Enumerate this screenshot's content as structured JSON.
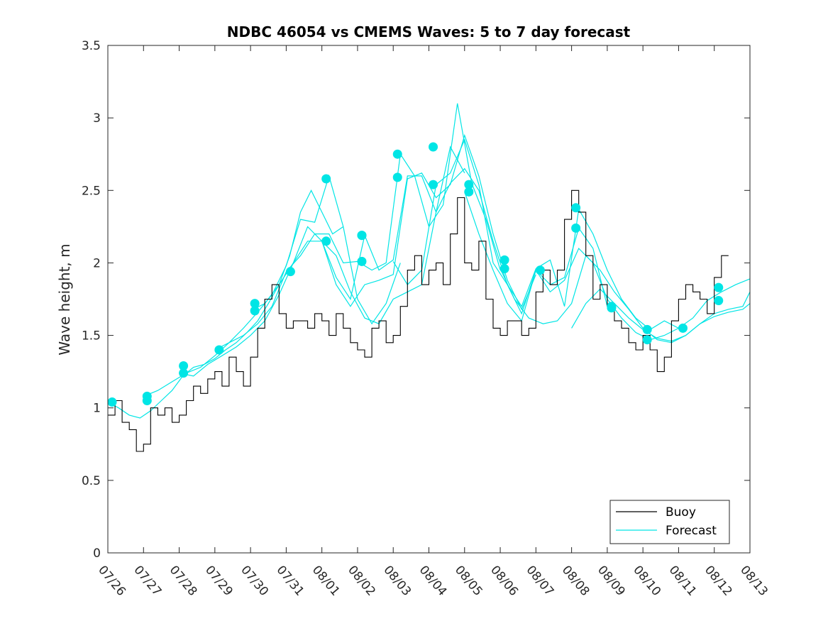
{
  "chart_data": {
    "type": "line",
    "title": "NDBC 46054 vs CMEMS Waves: 5 to 7 day forecast",
    "ylabel": "Wave height, m",
    "xlabel": "",
    "x_tick_labels": [
      "07/26",
      "07/27",
      "07/28",
      "07/29",
      "07/30",
      "07/31",
      "08/01",
      "08/02",
      "08/03",
      "08/04",
      "08/05",
      "08/06",
      "08/07",
      "08/08",
      "08/09",
      "08/10",
      "08/11",
      "08/12",
      "08/13"
    ],
    "xlim_days": [
      0,
      18
    ],
    "ylim": [
      0,
      3.5
    ],
    "y_ticks": [
      "0",
      "0.5",
      "1",
      "1.5",
      "2",
      "2.5",
      "3",
      "3.5"
    ],
    "legend": {
      "position": "bottom-right",
      "entries": [
        "Buoy",
        "Forecast"
      ]
    },
    "colors": {
      "buoy": "#000000",
      "forecast": "#00e5e5"
    },
    "series": [
      {
        "name": "Buoy",
        "x": [
          0,
          0.2,
          0.4,
          0.6,
          0.8,
          1.0,
          1.2,
          1.4,
          1.6,
          1.8,
          2.0,
          2.2,
          2.4,
          2.6,
          2.8,
          3.0,
          3.2,
          3.4,
          3.6,
          3.8,
          4.0,
          4.2,
          4.4,
          4.6,
          4.8,
          5.0,
          5.2,
          5.4,
          5.6,
          5.8,
          6.0,
          6.2,
          6.4,
          6.6,
          6.8,
          7.0,
          7.2,
          7.4,
          7.6,
          7.8,
          8.0,
          8.2,
          8.4,
          8.6,
          8.8,
          9.0,
          9.2,
          9.4,
          9.6,
          9.8,
          10.0,
          10.2,
          10.4,
          10.6,
          10.8,
          11.0,
          11.2,
          11.4,
          11.6,
          11.8,
          12.0,
          12.2,
          12.4,
          12.6,
          12.8,
          13.0,
          13.2,
          13.4,
          13.6,
          13.8,
          14.0,
          14.2,
          14.4,
          14.6,
          14.8,
          15.0,
          15.2,
          15.4,
          15.6,
          15.8,
          16.0,
          16.2,
          16.4,
          16.6,
          16.8,
          17.0,
          17.2,
          17.4
        ],
        "y": [
          0.95,
          1.05,
          0.9,
          0.85,
          0.7,
          0.75,
          1.0,
          0.95,
          1.0,
          0.9,
          0.95,
          1.05,
          1.15,
          1.1,
          1.2,
          1.25,
          1.15,
          1.35,
          1.25,
          1.15,
          1.35,
          1.55,
          1.75,
          1.85,
          1.65,
          1.55,
          1.6,
          1.6,
          1.55,
          1.65,
          1.6,
          1.5,
          1.65,
          1.55,
          1.45,
          1.4,
          1.35,
          1.55,
          1.6,
          1.45,
          1.5,
          1.7,
          1.95,
          2.05,
          1.85,
          1.95,
          2.0,
          1.85,
          2.2,
          2.45,
          2.0,
          1.95,
          2.15,
          1.75,
          1.55,
          1.5,
          1.6,
          1.6,
          1.5,
          1.55,
          1.8,
          1.95,
          1.85,
          1.95,
          2.3,
          2.5,
          2.35,
          2.05,
          1.75,
          1.85,
          1.7,
          1.6,
          1.55,
          1.45,
          1.4,
          1.5,
          1.4,
          1.25,
          1.35,
          1.6,
          1.75,
          1.85,
          1.8,
          1.75,
          1.65,
          1.9,
          2.05,
          2.05
        ]
      },
      {
        "name": "Forecast",
        "lines": [
          {
            "x": [
              0,
              0.3,
              0.6,
              0.9,
              1.2,
              1.5,
              1.8,
              2.1,
              2.4,
              2.7,
              3.0,
              3.3,
              3.6,
              3.9,
              4.2,
              4.5,
              4.8,
              5.1,
              5.4,
              5.7,
              6.0,
              6.3,
              6.6
            ],
            "y": [
              1.04,
              1.0,
              0.95,
              0.93,
              0.98,
              1.05,
              1.12,
              1.22,
              1.28,
              1.3,
              1.34,
              1.4,
              1.45,
              1.52,
              1.6,
              1.72,
              1.85,
              2.05,
              2.35,
              2.5,
              2.35,
              2.2,
              2.25
            ]
          },
          {
            "x": [
              1.0,
              1.4,
              1.8,
              2.2,
              2.6,
              3.0,
              3.4,
              3.8,
              4.2,
              4.6,
              5.0,
              5.4,
              5.8,
              6.2,
              6.6,
              7.0,
              7.4,
              7.8,
              8.2
            ],
            "y": [
              1.08,
              1.12,
              1.18,
              1.24,
              1.28,
              1.36,
              1.45,
              1.55,
              1.66,
              1.78,
              1.98,
              2.3,
              2.28,
              2.6,
              2.25,
              1.75,
              1.58,
              1.72,
              2.0
            ]
          },
          {
            "x": [
              2.0,
              2.4,
              2.8,
              3.2,
              3.6,
              4.0,
              4.4,
              4.8,
              5.2,
              5.6,
              6.0,
              6.4,
              6.8,
              7.2,
              7.6,
              8.0,
              8.4,
              8.8,
              9.2,
              9.6,
              10.0
            ],
            "y": [
              1.24,
              1.22,
              1.3,
              1.36,
              1.42,
              1.5,
              1.6,
              1.78,
              2.0,
              2.25,
              2.15,
              1.9,
              1.75,
              2.19,
              1.95,
              2.02,
              2.6,
              2.6,
              2.35,
              2.8,
              2.62
            ]
          },
          {
            "x": [
              3.0,
              3.4,
              3.8,
              4.2,
              4.6,
              5.0,
              5.4,
              5.8,
              6.2,
              6.6,
              7.0,
              7.4,
              7.8,
              8.2,
              8.6,
              9.0,
              9.4,
              9.8,
              10.2,
              10.6,
              11.0
            ],
            "y": [
              1.4,
              1.45,
              1.5,
              1.58,
              1.7,
              1.94,
              2.05,
              2.2,
              2.2,
              2.0,
              2.01,
              1.95,
              2.0,
              2.75,
              2.6,
              2.25,
              2.4,
              3.1,
              2.55,
              2.3,
              1.95
            ]
          },
          {
            "x": [
              4.0,
              4.4,
              4.8,
              5.2,
              5.6,
              6.0,
              6.4,
              6.8,
              7.2,
              7.6,
              8.0,
              8.4,
              8.8,
              9.2,
              9.6,
              10.0,
              10.4,
              10.8,
              11.2,
              11.6,
              12.0
            ],
            "y": [
              1.67,
              1.72,
              1.85,
              2.0,
              2.15,
              2.15,
              1.85,
              1.7,
              1.85,
              1.88,
              1.92,
              2.58,
              2.62,
              2.45,
              2.54,
              2.88,
              2.6,
              2.2,
              1.88,
              1.68,
              1.92
            ]
          },
          {
            "x": [
              6.0,
              6.4,
              6.8,
              7.2,
              7.6,
              8.0,
              8.4,
              8.8,
              9.2,
              9.6,
              10.0,
              10.4,
              10.8,
              11.2,
              11.6,
              12.0,
              12.4,
              12.8,
              13.2,
              13.6,
              14.0
            ],
            "y": [
              2.15,
              2.05,
              1.8,
              1.62,
              1.58,
              1.75,
              1.8,
              1.85,
              2.35,
              2.55,
              2.65,
              2.5,
              2.15,
              1.85,
              1.65,
              1.95,
              1.85,
              1.9,
              2.24,
              2.1,
              1.7
            ]
          },
          {
            "x": [
              8.0,
              8.4,
              8.8,
              9.2,
              9.6,
              10.0,
              10.4,
              10.8,
              11.2,
              11.6,
              12.0,
              12.4,
              12.8,
              13.2,
              13.6,
              14.0,
              14.4,
              14.8,
              15.2,
              15.6,
              16.0
            ],
            "y": [
              2.01,
              1.85,
              1.95,
              2.54,
              2.62,
              2.85,
              2.54,
              2.0,
              1.85,
              1.7,
              1.96,
              2.02,
              1.7,
              2.37,
              2.2,
              1.95,
              1.75,
              1.62,
              1.54,
              1.6,
              1.55
            ]
          },
          {
            "x": [
              10.0,
              10.4,
              10.8,
              11.2,
              11.6,
              12.0,
              12.4,
              12.8,
              13.2,
              13.6,
              14.0,
              14.4,
              14.8,
              15.2,
              15.6,
              16.0,
              16.4,
              16.8,
              17.2,
              17.6,
              18.0
            ],
            "y": [
              2.49,
              2.2,
              1.95,
              1.72,
              1.6,
              1.95,
              1.8,
              1.88,
              2.1,
              2.0,
              1.75,
              1.62,
              1.52,
              1.47,
              1.5,
              1.55,
              1.62,
              1.74,
              1.8,
              1.85,
              1.89
            ]
          },
          {
            "x": [
              11.0,
              11.4,
              11.8,
              12.2,
              12.6,
              13.0,
              13.4,
              13.8,
              14.2,
              14.6,
              15.0,
              15.4,
              15.8,
              16.2,
              16.6,
              17.0,
              17.4,
              17.8,
              18.0
            ],
            "y": [
              1.96,
              1.75,
              1.62,
              1.58,
              1.6,
              1.72,
              2.05,
              1.95,
              1.8,
              1.68,
              1.55,
              1.47,
              1.45,
              1.5,
              1.58,
              1.65,
              1.68,
              1.7,
              1.8
            ]
          },
          {
            "x": [
              13.0,
              13.4,
              13.8,
              14.2,
              14.6,
              15.0,
              15.4,
              15.8,
              16.2,
              16.6,
              17.0,
              17.4,
              17.8,
              18.0
            ],
            "y": [
              1.55,
              1.72,
              1.82,
              1.72,
              1.62,
              1.54,
              1.48,
              1.46,
              1.5,
              1.58,
              1.63,
              1.66,
              1.68,
              1.72
            ]
          }
        ],
        "markers": {
          "x": [
            0.12,
            1.1,
            1.1,
            2.12,
            2.12,
            3.12,
            4.12,
            4.12,
            5.12,
            6.12,
            6.12,
            7.12,
            7.12,
            7.12,
            8.12,
            8.12,
            9.12,
            9.12,
            10.12,
            10.12,
            11.12,
            11.12,
            12.12,
            13.12,
            13.12,
            14.12,
            14.12,
            15.12,
            15.12,
            16.12,
            17.12,
            17.12
          ],
          "y": [
            1.04,
            1.05,
            1.08,
            1.24,
            1.29,
            1.4,
            1.67,
            1.72,
            1.94,
            2.15,
            2.58,
            2.01,
            2.19,
            2.19,
            2.59,
            2.75,
            2.54,
            2.8,
            2.49,
            2.54,
            1.96,
            2.02,
            1.95,
            2.24,
            2.38,
            1.69,
            1.7,
            1.47,
            1.54,
            1.55,
            1.74,
            1.83
          ]
        }
      }
    ]
  }
}
